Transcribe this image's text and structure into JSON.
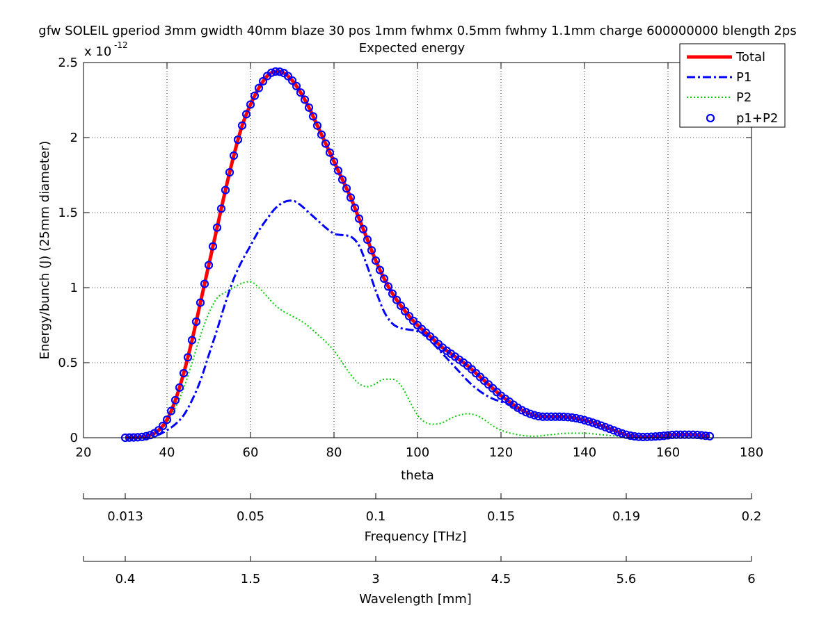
{
  "chart_data": {
    "type": "line",
    "title": "gfw SOLEIL gperiod 3mm gwidth 40mm blaze 30 pos 1mm fwhmx 0.5mm fwhmy 1.1mm charge 600000000 blength 2ps",
    "subtitle": "Expected energy",
    "xlabel": "theta",
    "ylabel": "Energy/bunch (J) (25mm diameter)",
    "y_multiplier_label": "x 10",
    "y_multiplier_exp": "-12",
    "xlim": [
      20,
      180
    ],
    "ylim": [
      0,
      2.5
    ],
    "xticks": [
      "20",
      "40",
      "60",
      "80",
      "100",
      "120",
      "140",
      "160",
      "180"
    ],
    "yticks": [
      "0",
      "0.5",
      "1",
      "1.5",
      "2",
      "2.5"
    ],
    "grid": true,
    "legend_position": "top-right",
    "series": [
      {
        "name": "Total",
        "style": "solid",
        "color": "#ff0000",
        "x": [
          30,
          35,
          38,
          40,
          42,
          44,
          46,
          48,
          50,
          52,
          54,
          56,
          58,
          60,
          62,
          64,
          66,
          68,
          70,
          72,
          74,
          76,
          78,
          80,
          82,
          84,
          86,
          88,
          90,
          92,
          94,
          96,
          98,
          100,
          102,
          104,
          106,
          108,
          110,
          112,
          114,
          116,
          118,
          120,
          122,
          124,
          126,
          128,
          130,
          134,
          138,
          142,
          146,
          150,
          154,
          158,
          162,
          166,
          170
        ],
        "y": [
          0,
          0.01,
          0.05,
          0.12,
          0.25,
          0.43,
          0.65,
          0.9,
          1.15,
          1.4,
          1.65,
          1.88,
          2.08,
          2.22,
          2.33,
          2.41,
          2.44,
          2.43,
          2.38,
          2.3,
          2.2,
          2.08,
          1.96,
          1.84,
          1.72,
          1.6,
          1.46,
          1.32,
          1.18,
          1.06,
          0.96,
          0.88,
          0.81,
          0.75,
          0.7,
          0.65,
          0.6,
          0.56,
          0.52,
          0.48,
          0.43,
          0.38,
          0.33,
          0.28,
          0.24,
          0.2,
          0.17,
          0.15,
          0.14,
          0.14,
          0.13,
          0.1,
          0.06,
          0.02,
          0.005,
          0.01,
          0.02,
          0.02,
          0.01
        ]
      },
      {
        "name": "P1",
        "style": "dashdot",
        "color": "#0000ff",
        "x": [
          30,
          35,
          38,
          40,
          42,
          44,
          46,
          48,
          50,
          52,
          54,
          56,
          58,
          60,
          62,
          64,
          66,
          68,
          70,
          72,
          74,
          76,
          78,
          80,
          82,
          84,
          86,
          88,
          90,
          92,
          94,
          96,
          98,
          100,
          102,
          104,
          106,
          108,
          110,
          112,
          114,
          116,
          118,
          120,
          122,
          124,
          126,
          128,
          130,
          134,
          138,
          142,
          146,
          150,
          154,
          158,
          162,
          166,
          170
        ],
        "y": [
          0,
          0,
          0.02,
          0.05,
          0.09,
          0.15,
          0.25,
          0.38,
          0.55,
          0.72,
          0.9,
          1.06,
          1.18,
          1.28,
          1.38,
          1.46,
          1.53,
          1.57,
          1.58,
          1.55,
          1.5,
          1.45,
          1.4,
          1.36,
          1.35,
          1.34,
          1.28,
          1.14,
          0.98,
          0.84,
          0.76,
          0.73,
          0.72,
          0.71,
          0.68,
          0.62,
          0.56,
          0.5,
          0.44,
          0.38,
          0.33,
          0.29,
          0.26,
          0.24,
          0.22,
          0.19,
          0.17,
          0.15,
          0.14,
          0.14,
          0.13,
          0.1,
          0.06,
          0.02,
          0.005,
          0.01,
          0.02,
          0.02,
          0.01
        ]
      },
      {
        "name": "P2",
        "style": "dotted",
        "color": "#00cc00",
        "x": [
          30,
          35,
          38,
          40,
          42,
          44,
          46,
          48,
          50,
          52,
          54,
          56,
          58,
          60,
          62,
          64,
          66,
          68,
          70,
          72,
          74,
          76,
          78,
          80,
          82,
          84,
          86,
          88,
          90,
          92,
          94,
          96,
          98,
          100,
          102,
          104,
          106,
          108,
          110,
          112,
          114,
          116,
          118,
          120,
          124,
          128,
          132,
          136,
          140,
          144,
          148,
          152
        ],
        "y": [
          0,
          0.01,
          0.04,
          0.1,
          0.2,
          0.33,
          0.5,
          0.68,
          0.83,
          0.93,
          0.97,
          1.0,
          1.03,
          1.04,
          1.0,
          0.94,
          0.88,
          0.84,
          0.81,
          0.78,
          0.74,
          0.69,
          0.64,
          0.58,
          0.5,
          0.42,
          0.36,
          0.34,
          0.36,
          0.39,
          0.39,
          0.35,
          0.25,
          0.15,
          0.1,
          0.09,
          0.1,
          0.13,
          0.15,
          0.16,
          0.15,
          0.12,
          0.08,
          0.05,
          0.02,
          0.01,
          0.02,
          0.03,
          0.03,
          0.02,
          0.01,
          0.0
        ]
      },
      {
        "name": "p1+P2",
        "style": "circles",
        "color": "#0000ff",
        "x_start": 30,
        "x_end": 170,
        "x_step": 1
      }
    ],
    "secondary_axes": [
      {
        "label": "Frequency [THz]",
        "ticks": [
          "0.013",
          "0.05",
          "0.1",
          "0.15",
          "0.19",
          "0.2"
        ],
        "tick_theta": [
          30,
          60,
          90,
          120,
          150,
          180
        ]
      },
      {
        "label": "Wavelength [mm]",
        "ticks": [
          "0.4",
          "1.5",
          "3",
          "4.5",
          "5.6",
          "6"
        ],
        "tick_theta": [
          30,
          60,
          90,
          120,
          150,
          180
        ]
      }
    ]
  }
}
